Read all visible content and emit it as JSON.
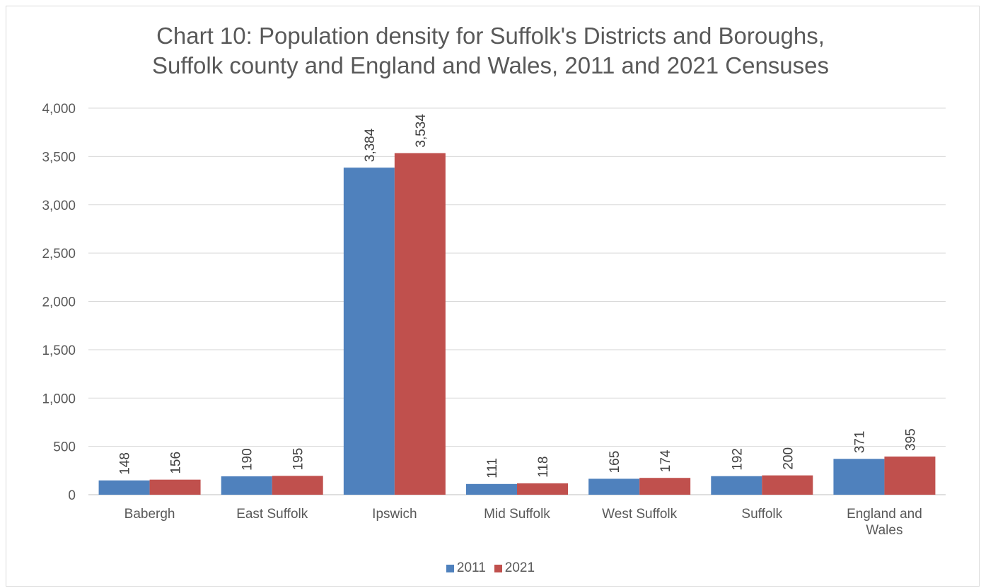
{
  "chart_data": {
    "type": "bar",
    "title_lines": [
      "Chart 10: Population density for Suffolk's Districts and Boroughs,",
      "Suffolk county and England and Wales, 2011 and 2021 Censuses"
    ],
    "categories": [
      "Babergh",
      "East Suffolk",
      "Ipswich",
      "Mid Suffolk",
      "West Suffolk",
      "Suffolk",
      "England and Wales"
    ],
    "series": [
      {
        "name": "2011",
        "color": "#4f81bd",
        "values": [
          148,
          190,
          3384,
          111,
          165,
          192,
          371
        ],
        "labels": [
          "148",
          "190",
          "3,384",
          "111",
          "165",
          "192",
          "371"
        ]
      },
      {
        "name": "2021",
        "color": "#c0504d",
        "values": [
          156,
          195,
          3534,
          118,
          174,
          200,
          395
        ],
        "labels": [
          "156",
          "195",
          "3,534",
          "118",
          "174",
          "200",
          "395"
        ]
      }
    ],
    "ylim": [
      0,
      4000
    ],
    "yticks": [
      0,
      500,
      1000,
      1500,
      2000,
      2500,
      3000,
      3500,
      4000
    ],
    "ytick_labels": [
      "0",
      "500",
      "1,000",
      "1,500",
      "2,000",
      "2,500",
      "3,000",
      "3,500",
      "4,000"
    ],
    "data_label_rotation": "vertical",
    "grid": true,
    "legend_position": "bottom"
  }
}
